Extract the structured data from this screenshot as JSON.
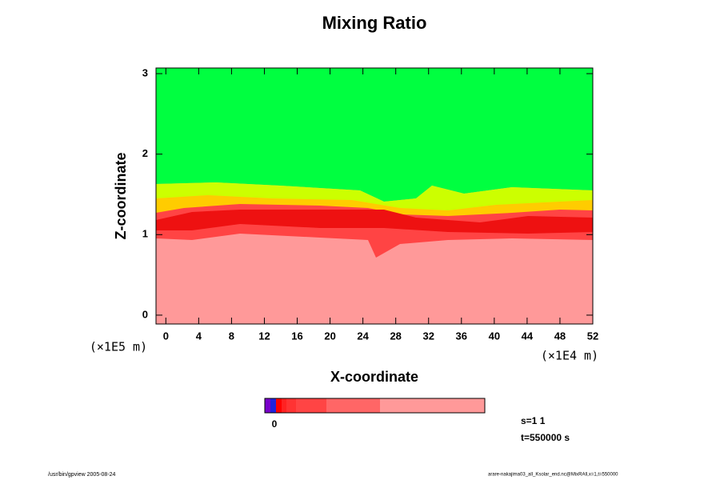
{
  "chart_data": {
    "type": "contour",
    "title": "Mixing Ratio",
    "x_label": "X-coordinate",
    "y_label": "Z-coordinate",
    "x_unit": "(×1E4 m)",
    "y_unit": "(×1E5 m)",
    "xlim": [
      -1.2,
      52
    ],
    "ylim": [
      -0.11,
      3.07
    ],
    "xticks": [
      0,
      4,
      8,
      12,
      16,
      20,
      24,
      28,
      32,
      36,
      40,
      44,
      48,
      52
    ],
    "yticks": [
      0,
      1,
      2,
      3
    ],
    "colorbar_label": "0",
    "annotations": [
      "s=1 1",
      "t=550000 s"
    ],
    "footer_left": "/usr/bin/gpview 2005-08-24",
    "footer_right": "arare-nakajima03_all_Ksolar_end.nc@MixRAll,x=1,t=550000"
  }
}
